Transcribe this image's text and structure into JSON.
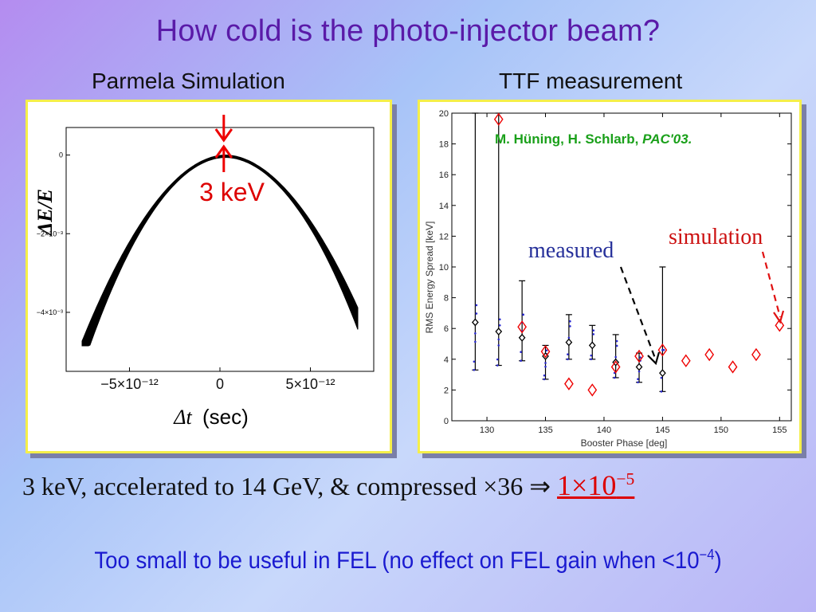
{
  "slide": {
    "title": "How cold is the photo-injector beam?",
    "left_heading": "Parmela Simulation",
    "right_heading": "TTF measurement",
    "line1_text": "3 keV, accelerated to 14 GeV, & compressed ×36 ⇒",
    "line1_result_base": "1×10",
    "line1_result_exp": "−5",
    "line2_text": "Too small to be useful in FEL (no effect on FEL gain when <10",
    "line2_exp": "−4",
    "line2_tail": ")"
  },
  "chart_data": [
    {
      "type": "area",
      "ylabel": "ΔE/E",
      "xlabel_symbol": "Δt",
      "xlabel_unit": "(sec)",
      "annotation": "3 keV",
      "yticks": [
        "0",
        "−2×10⁻³",
        "−4×10⁻³"
      ],
      "ytick_values": [
        0,
        -0.002,
        -0.004
      ],
      "xticks": [
        "−5×10⁻¹²",
        "0",
        "5×10⁻¹²"
      ],
      "xtick_values": [
        -5e-12,
        0,
        5e-12
      ],
      "xlim": [
        -8.5e-12,
        8.5e-12
      ],
      "ylim": [
        -0.0055,
        0.0007
      ],
      "curve": {
        "peak_x": 3e-13,
        "peak_y": 0.0
      }
    },
    {
      "type": "scatter",
      "xlabel": "Booster Phase [deg]",
      "ylabel": "RMS Energy Spread [keV]",
      "xlim": [
        127,
        156
      ],
      "ylim": [
        0,
        20
      ],
      "xticks": [
        130,
        135,
        140,
        145,
        150,
        155
      ],
      "yticks": [
        0,
        2,
        4,
        6,
        8,
        10,
        12,
        14,
        16,
        18,
        20
      ],
      "citation": "M. Hüning, H. Schlarb, ",
      "citation_journal": "PAC'03.",
      "label_measured": "measured",
      "label_simulation": "simulation",
      "colors": {
        "measured": "#000000",
        "simulation": "#ee0000",
        "citation": "#1aa01a",
        "measured_label": "#26309a"
      },
      "measured": [
        {
          "x": 129,
          "y": 6.4,
          "ylo": 3.3,
          "yhi": 20
        },
        {
          "x": 131,
          "y": 5.8,
          "ylo": 3.6,
          "yhi": 20
        },
        {
          "x": 133,
          "y": 5.4,
          "ylo": 3.9,
          "yhi": 9.1
        },
        {
          "x": 135,
          "y": 4.2,
          "ylo": 2.7,
          "yhi": 4.9
        },
        {
          "x": 137,
          "y": 5.1,
          "ylo": 4.0,
          "yhi": 6.9
        },
        {
          "x": 139,
          "y": 4.9,
          "ylo": 4.0,
          "yhi": 6.2
        },
        {
          "x": 141,
          "y": 3.8,
          "ylo": 2.8,
          "yhi": 5.6
        },
        {
          "x": 143,
          "y": 3.5,
          "ylo": 2.5,
          "yhi": 4.4
        },
        {
          "x": 145,
          "y": 3.1,
          "ylo": 1.9,
          "yhi": 10.0
        }
      ],
      "simulation": [
        {
          "x": 131,
          "y": 19.6
        },
        {
          "x": 133,
          "y": 6.1
        },
        {
          "x": 135,
          "y": 4.5
        },
        {
          "x": 137,
          "y": 2.4
        },
        {
          "x": 139,
          "y": 2.0
        },
        {
          "x": 141,
          "y": 3.5
        },
        {
          "x": 143,
          "y": 4.2
        },
        {
          "x": 145,
          "y": 4.6
        },
        {
          "x": 147,
          "y": 3.9
        },
        {
          "x": 149,
          "y": 4.3
        },
        {
          "x": 151,
          "y": 3.5
        },
        {
          "x": 153,
          "y": 4.3
        },
        {
          "x": 155,
          "y": 6.2
        }
      ]
    }
  ]
}
